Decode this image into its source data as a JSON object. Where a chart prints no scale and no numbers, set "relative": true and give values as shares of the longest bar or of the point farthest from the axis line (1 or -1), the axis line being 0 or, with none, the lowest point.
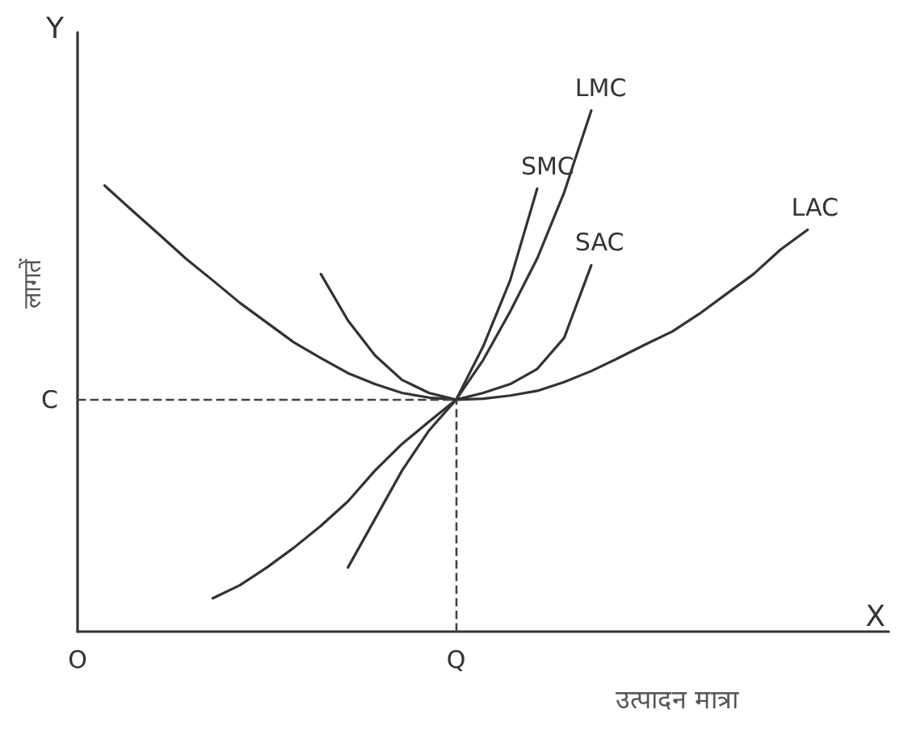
{
  "chart_data": {
    "type": "line",
    "relative": true,
    "xlabel": "उत्पादन मात्रा",
    "ylabel": "लागतें",
    "annotations": [
      "Y",
      "X"
    ],
    "categories": [
      "O",
      null,
      null,
      null,
      null,
      null,
      null,
      null,
      null,
      null,
      null,
      null,
      null,
      null,
      "Q",
      null,
      null,
      null,
      null,
      null,
      null,
      null,
      null,
      null,
      null,
      null,
      null,
      null,
      null,
      null,
      null
    ],
    "grid": false,
    "legend": false,
    "marker": "none",
    "line_style": "solid",
    "ref_lines": [
      {
        "axis": "y",
        "value": 0.445,
        "label": "C",
        "line_style": "dashed"
      },
      {
        "axis": "x",
        "value": "Q",
        "line_style": "dashed"
      }
    ],
    "series": [
      {
        "name": "LAC",
        "color": "#333333",
        "values": [
          null,
          0.856,
          0.809,
          0.763,
          0.716,
          0.674,
          0.631,
          0.593,
          0.555,
          0.525,
          0.496,
          0.475,
          0.458,
          0.449,
          0.445,
          0.447,
          0.453,
          0.462,
          0.479,
          0.5,
          0.525,
          0.551,
          0.576,
          0.61,
          0.648,
          0.686,
          0.733,
          0.771,
          null,
          null,
          null
        ]
      },
      {
        "name": "SAC",
        "color": "#333333",
        "values": [
          null,
          null,
          null,
          null,
          null,
          null,
          null,
          null,
          null,
          0.686,
          0.597,
          0.53,
          0.483,
          0.458,
          0.445,
          0.458,
          0.475,
          0.504,
          0.564,
          0.703,
          null,
          null,
          null,
          null,
          null,
          null,
          null,
          null,
          null,
          null,
          null
        ]
      },
      {
        "name": "SMC",
        "color": "#333333",
        "values": [
          null,
          null,
          null,
          null,
          null,
          null,
          null,
          null,
          null,
          null,
          0.123,
          0.216,
          0.309,
          0.386,
          0.445,
          0.547,
          0.674,
          0.85,
          null,
          null,
          null,
          null,
          null,
          null,
          null,
          null,
          null,
          null,
          null,
          null,
          null
        ]
      },
      {
        "name": "LMC",
        "color": "#333333",
        "values": [
          null,
          null,
          null,
          null,
          null,
          0.064,
          0.089,
          0.123,
          0.161,
          0.203,
          0.25,
          0.309,
          0.36,
          0.403,
          0.445,
          0.521,
          0.614,
          0.716,
          0.843,
          1,
          null,
          null,
          null,
          null,
          null,
          null,
          null,
          null,
          null,
          null,
          null
        ]
      }
    ]
  }
}
